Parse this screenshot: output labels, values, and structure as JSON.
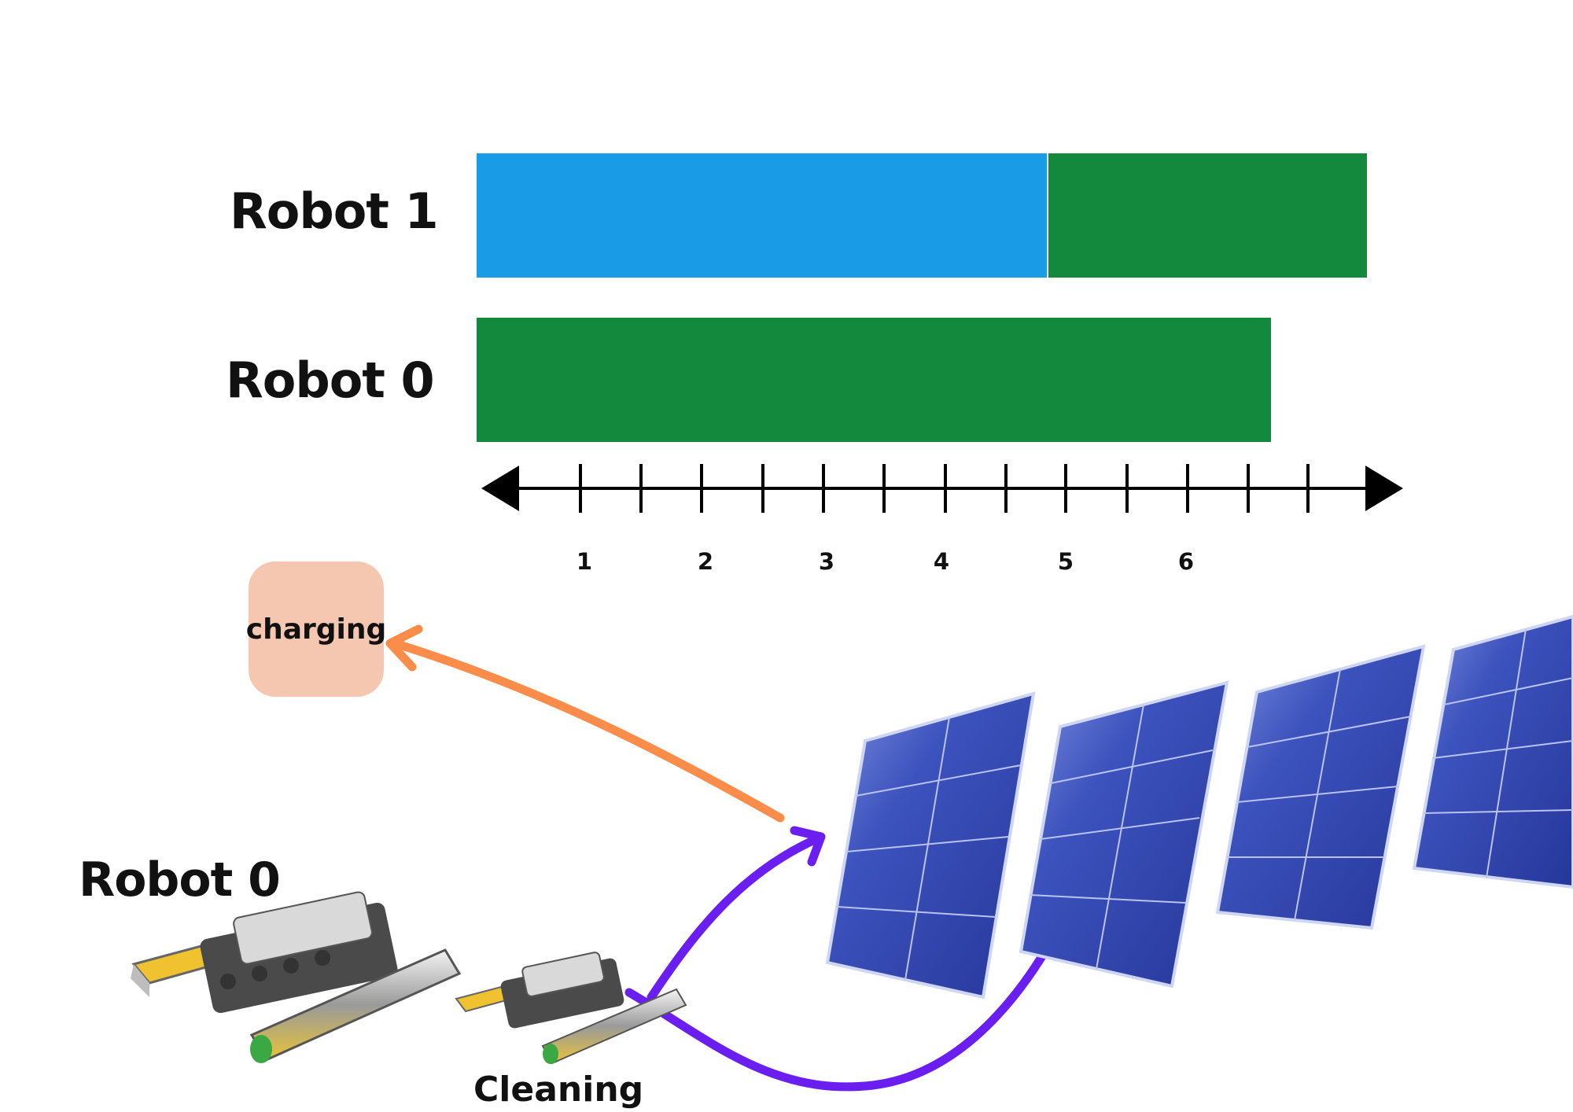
{
  "timeline": {
    "rows": [
      {
        "label": "Robot 1",
        "segments": [
          {
            "activity": "cleaning",
            "start": 0,
            "end": 4.75,
            "color": "#1a9be6"
          },
          {
            "activity": "charging",
            "start": 4.75,
            "end": 7.4,
            "color": "#12893d"
          }
        ]
      },
      {
        "label": "Robot 0",
        "segments": [
          {
            "activity": "charging",
            "start": 0,
            "end": 6.6,
            "color": "#12893d"
          }
        ]
      }
    ],
    "tick_labels": [
      "1",
      "2",
      "3",
      "4",
      "5",
      "6"
    ]
  },
  "scene": {
    "charging_label": "charging",
    "robot_label": "Robot 0",
    "cleaning_label": "Cleaning",
    "arrow_colors": {
      "to_charging": "#fb8c4a",
      "cleaning_path": "#6a1ff0"
    },
    "panel_color": "#3a50b8",
    "panel_count": 4
  }
}
